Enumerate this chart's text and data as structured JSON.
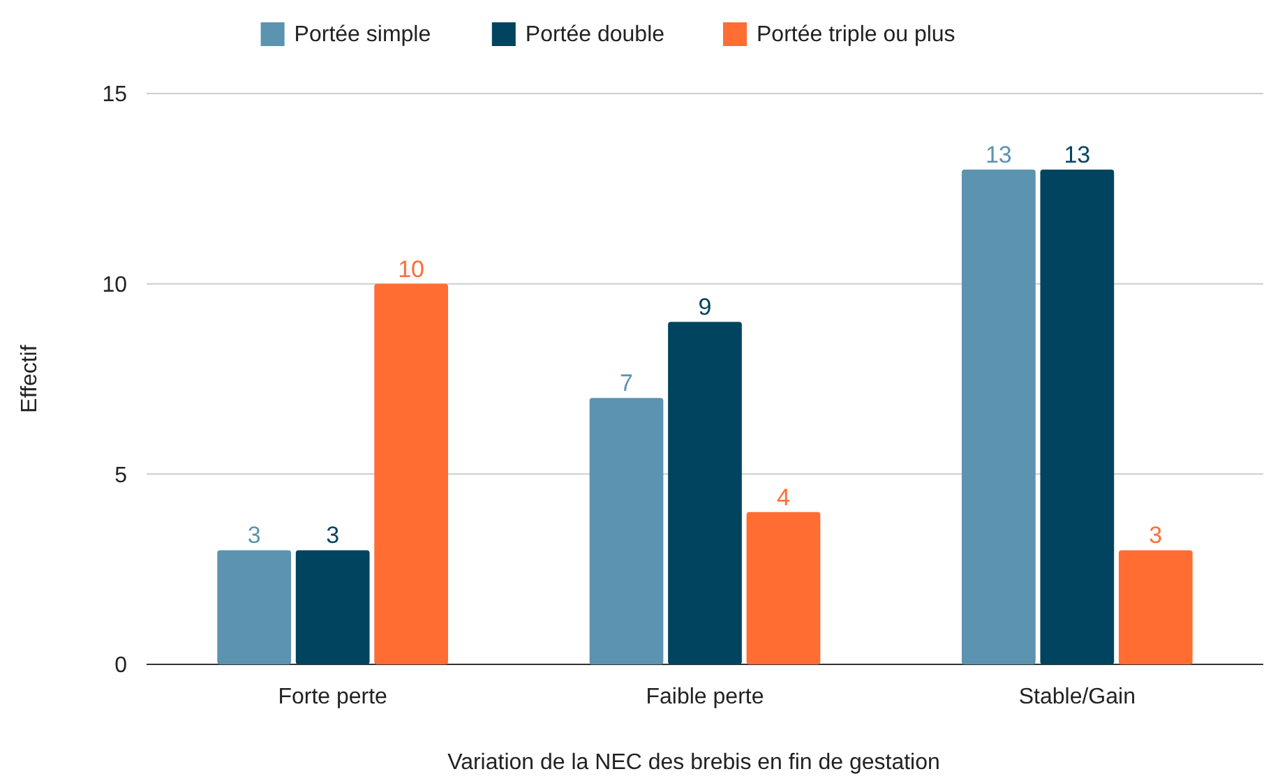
{
  "chart_data": {
    "type": "bar",
    "xlabel": "Variation de la NEC des brebis en fin de gestation",
    "ylabel": "Effectif",
    "categories": [
      "Forte perte",
      "Faible perte",
      "Stable/Gain"
    ],
    "series": [
      {
        "name": "Portée simple",
        "color": "#5b93b0",
        "values": [
          3,
          7,
          13
        ]
      },
      {
        "name": "Portée double",
        "color": "#00445f",
        "values": [
          3,
          9,
          13
        ]
      },
      {
        "name": "Portée triple ou plus",
        "color": "#ff6d33",
        "values": [
          10,
          4,
          3
        ]
      }
    ],
    "ylim": [
      0,
      15
    ],
    "yticks": [
      0,
      5,
      10,
      15
    ],
    "grid": "y",
    "legend": "top",
    "data_labels": true
  }
}
